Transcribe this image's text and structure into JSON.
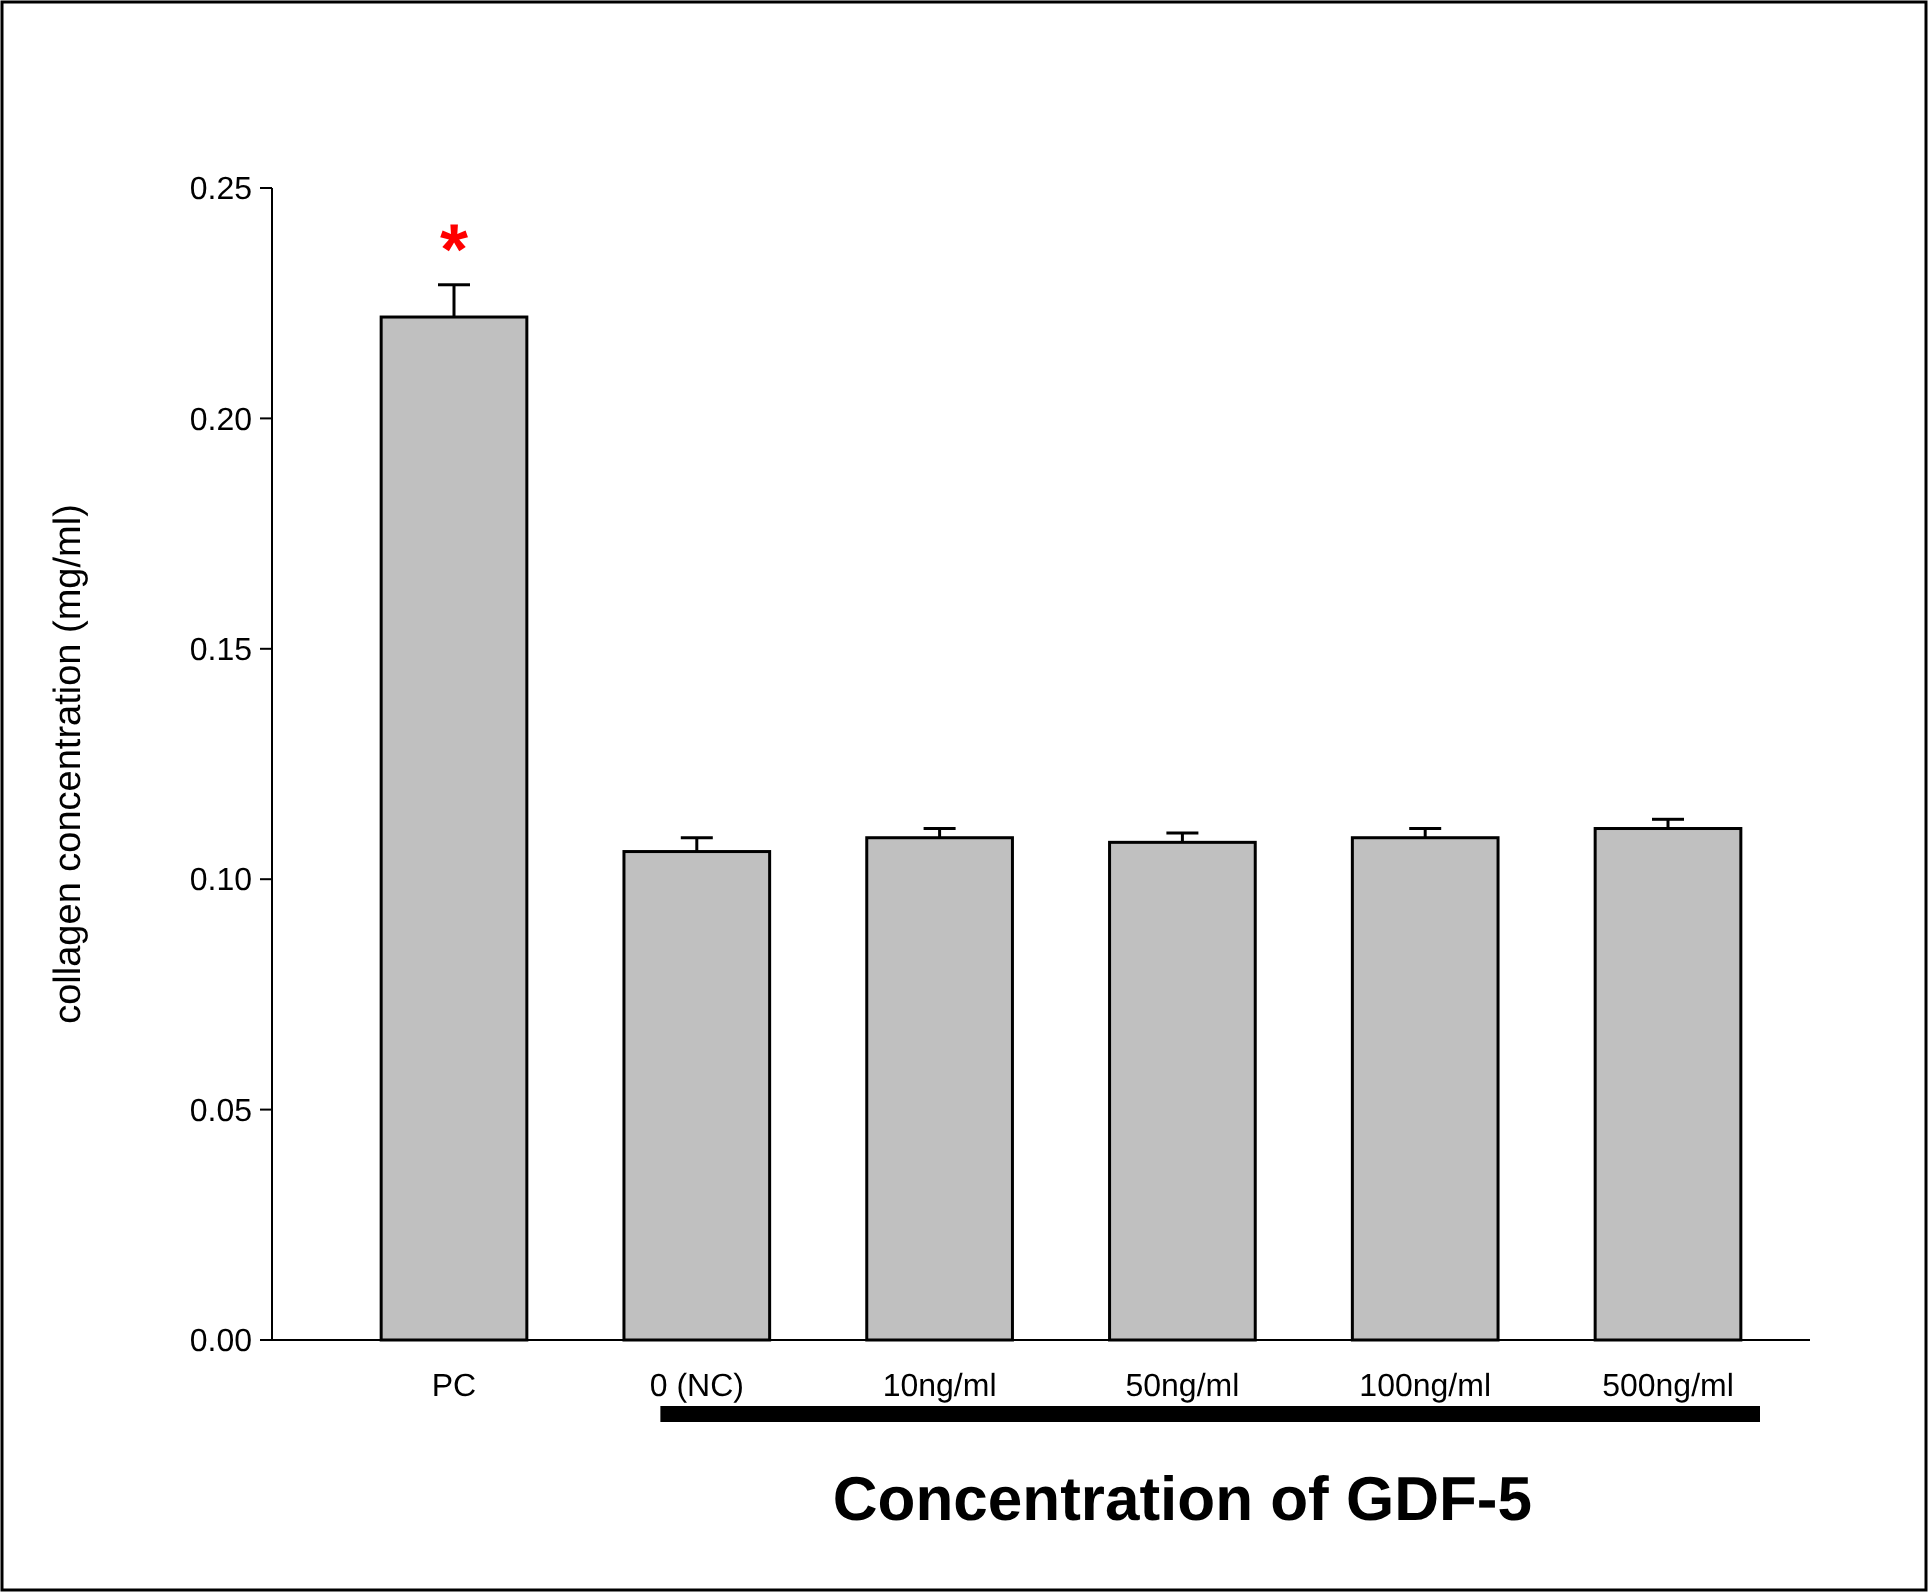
{
  "chart_data": {
    "type": "bar",
    "categories": [
      "PC",
      "0 (NC)",
      "10ng/ml",
      "50ng/ml",
      "100ng/ml",
      "500ng/ml"
    ],
    "values": [
      0.222,
      0.106,
      0.109,
      0.108,
      0.109,
      0.111
    ],
    "errors": [
      0.007,
      0.003,
      0.002,
      0.002,
      0.002,
      0.002
    ],
    "color": "#c0c0c0",
    "xlabel": "Concentration of GDF-5",
    "ylabel": "collagen concentration (mg/ml)",
    "ylim": [
      0,
      0.25
    ],
    "yticks": [
      {
        "value": 0,
        "label": "0.00"
      },
      {
        "value": 0.05,
        "label": "0.05"
      },
      {
        "value": 0.1,
        "label": "0.10"
      },
      {
        "value": 0.15,
        "label": "0.15"
      },
      {
        "value": 0.2,
        "label": "0.20"
      },
      {
        "value": 0.25,
        "label": "0.25"
      }
    ],
    "annotations": [
      "*"
    ],
    "grid": false
  }
}
